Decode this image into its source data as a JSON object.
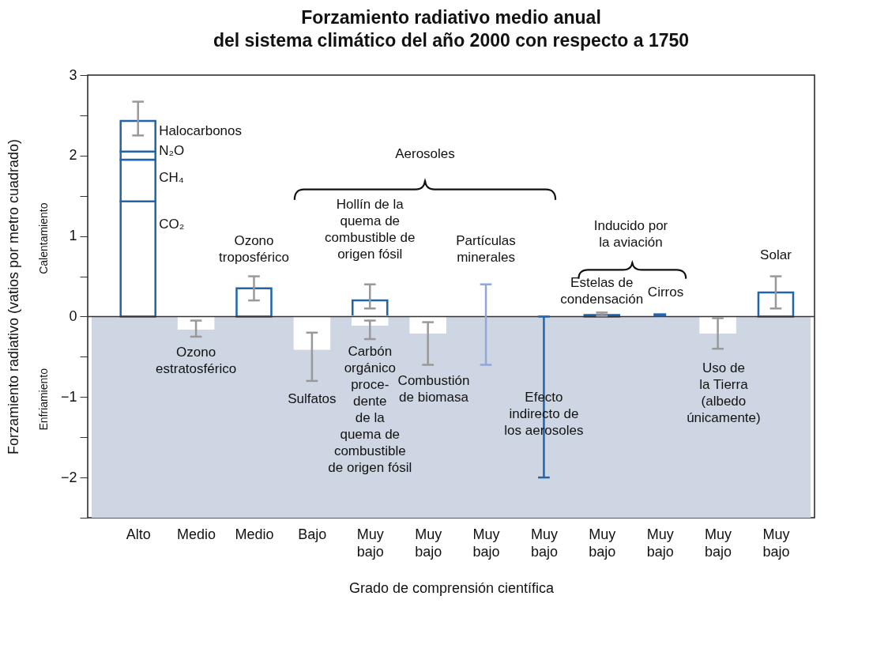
{
  "chart_data": {
    "type": "bar",
    "title": "Forzamiento radiativo medio anual\ndel sistema climático del año 2000 con respecto a 1750",
    "xlabel": "Grado de comprensión científica",
    "ylabel": "Forzamiento radiativo (vatios por metro cuadrado)",
    "categories": [
      "Alto",
      "Medio",
      "Medio",
      "Bajo",
      "Muy bajo",
      "Muy bajo",
      "Muy bajo",
      "Muy bajo",
      "Muy bajo",
      "Muy bajo",
      "Muy bajo",
      "Muy bajo"
    ],
    "stacked": true,
    "series": [
      {
        "colors": [
          "#1f64ad",
          "#ffffff",
          "#1f64ad",
          "#ffffff",
          "#1f64ad",
          "#ffffff",
          null,
          null,
          "#1f64ad",
          null,
          "#ffffff",
          "#1f64ad"
        ],
        "values": [
          1.43,
          -0.15,
          0.35,
          -0.4,
          0.2,
          -0.2,
          null,
          null,
          0.02,
          null,
          -0.2,
          0.3
        ],
        "errors": [
          null,
          [
            -0.25,
            -0.05
          ],
          [
            0.2,
            0.5
          ],
          [
            -0.8,
            -0.2
          ],
          [
            0.1,
            0.4
          ],
          [
            -0.6,
            -0.07
          ],
          null,
          null,
          [
            0.01,
            0.05
          ],
          null,
          [
            -0.4,
            -0.02
          ],
          [
            0.1,
            0.5
          ]
        ]
      },
      {
        "color": "#1f64ad",
        "values": [
          0.52,
          null,
          null,
          null,
          null,
          null,
          null,
          null,
          null,
          null,
          null,
          null
        ]
      },
      {
        "color": "#1f64ad",
        "values": [
          0.1,
          null,
          null,
          null,
          null,
          null,
          null,
          null,
          null,
          null,
          null,
          null
        ]
      },
      {
        "color": "#1f64ad",
        "values": [
          0.38,
          null,
          null,
          null,
          null,
          null,
          null,
          null,
          null,
          null,
          null,
          null
        ],
        "errors": [
          [
            2.25,
            2.67
          ],
          null,
          null,
          null,
          null,
          null,
          null,
          null,
          null,
          null,
          null,
          null
        ]
      },
      {
        "color": "#ffffff",
        "values": [
          null,
          null,
          null,
          null,
          -0.1,
          null,
          null,
          null,
          null,
          null,
          null,
          null
        ],
        "errors": [
          null,
          null,
          null,
          null,
          [
            -0.28,
            -0.05
          ],
          null,
          null,
          null,
          null,
          null,
          null,
          null
        ]
      },
      {
        "color": "#94a6d6",
        "base": [
          null,
          null,
          null,
          null,
          null,
          null,
          -0.6,
          null,
          null,
          null,
          null,
          null
        ],
        "values": [
          null,
          null,
          null,
          null,
          null,
          null,
          1.0,
          null,
          null,
          null,
          null,
          null
        ]
      },
      {
        "color": "#1f64ad",
        "base": [
          null,
          null,
          null,
          null,
          null,
          null,
          null,
          -2,
          null,
          0,
          null,
          null
        ],
        "values": [
          null,
          null,
          null,
          null,
          null,
          null,
          null,
          2,
          null,
          0.04,
          null,
          null
        ]
      }
    ],
    "ylim": [
      -2.5,
      3
    ],
    "yticks": [
      {
        "value": -2.5,
        "label": null
      },
      {
        "value": -2,
        "label": "−2"
      },
      {
        "value": -1.5,
        "label": null
      },
      {
        "value": -1,
        "label": "−1"
      },
      {
        "value": -0.5,
        "label": null
      },
      0,
      {
        "value": 0.5,
        "label": null
      },
      1,
      {
        "value": 1.5,
        "label": null
      },
      2,
      {
        "value": 2.5,
        "label": null
      },
      3
    ],
    "bands": [
      {
        "axis": "y",
        "from": -2.5,
        "to": 0,
        "color": "#cfd6e3"
      }
    ],
    "ref_lines": [
      {
        "axis": "y",
        "value": 0,
        "color": "#333333"
      }
    ],
    "annotations": [
      "Halocarbonos",
      "N₂O",
      "CH₄",
      "CO₂",
      "Aerosoles",
      "Hollín de la\nquema de\ncombustible de\norigen fósil",
      "Partículas\nminerales",
      "Inducido por\nla aviación",
      "Ozono\ntroposférico",
      "Solar",
      "Estelas de\ncondensación",
      "Cirros",
      "Ozono\nestratosférico",
      "Sulfatos",
      "Carbón\norgánico\nproce-\ndente\nde la\nquema de\ncombustible\nde origen fósil",
      "Combustión\nde biomasa",
      "Efecto\nindirecto de\nlos aerosoles",
      "Uso de\nla Tierra\n(albedo\núnicamente)",
      "Calentamiento",
      "Enfriamiento"
    ]
  }
}
